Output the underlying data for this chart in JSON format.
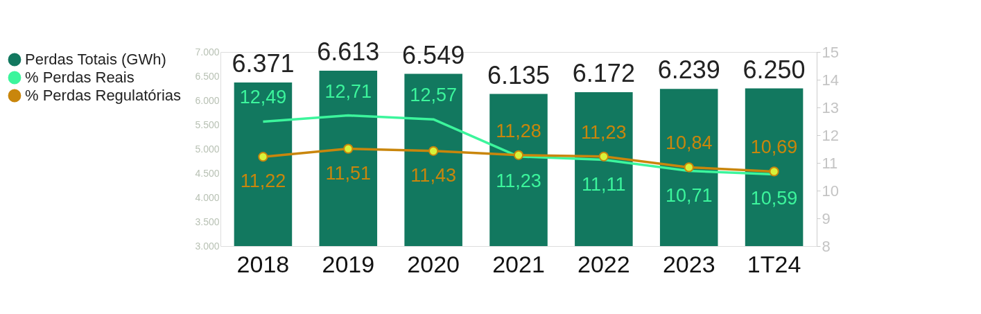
{
  "chart_data": {
    "type": "bar",
    "categories": [
      "2018",
      "2019",
      "2020",
      "2021",
      "2022",
      "2023",
      "1T24"
    ],
    "series": [
      {
        "name": "Perdas Totais (GWh)",
        "color": "#12785f",
        "values": [
          6371,
          6613,
          6549,
          6135,
          6172,
          6239,
          6250
        ],
        "value_labels": [
          "6.371",
          "6.613",
          "6.549",
          "6.135",
          "6.172",
          "6.239",
          "6.250"
        ]
      },
      {
        "name": "% Perdas Reais",
        "type": "line",
        "axis": "y2",
        "color": "#3cf59c",
        "marker": "none",
        "values": [
          12.49,
          12.71,
          12.57,
          11.23,
          11.11,
          10.71,
          10.59
        ],
        "value_labels": [
          "12,49",
          "12,71",
          "12,57",
          "11,23",
          "11,11",
          "10,71",
          "10,59"
        ]
      },
      {
        "name": "% Perdas Regulatórias",
        "type": "line",
        "axis": "y2",
        "color": "#c9860c",
        "marker": "circle",
        "values": [
          11.22,
          11.51,
          11.43,
          11.28,
          11.23,
          10.84,
          10.69
        ],
        "value_labels": [
          "11,22",
          "11,51",
          "11,43",
          "11,28",
          "11,23",
          "10,84",
          "10,69"
        ]
      }
    ],
    "ylim": [
      3000,
      7000
    ],
    "yticks": [
      {
        "value": 3000,
        "label": "3.000"
      },
      {
        "value": 3500,
        "label": "3.500"
      },
      {
        "value": 4000,
        "label": "4.000"
      },
      {
        "value": 4500,
        "label": "4.500"
      },
      {
        "value": 5000,
        "label": "5.000"
      },
      {
        "value": 5500,
        "label": "5.500"
      },
      {
        "value": 6000,
        "label": "6.000"
      },
      {
        "value": 6500,
        "label": "6.500"
      },
      {
        "value": 7000,
        "label": "7.000"
      }
    ],
    "y2lim": [
      8,
      15
    ],
    "y2ticks": [
      8,
      9,
      10,
      11,
      12,
      13,
      14,
      15
    ],
    "grid": false,
    "legend": "left"
  }
}
